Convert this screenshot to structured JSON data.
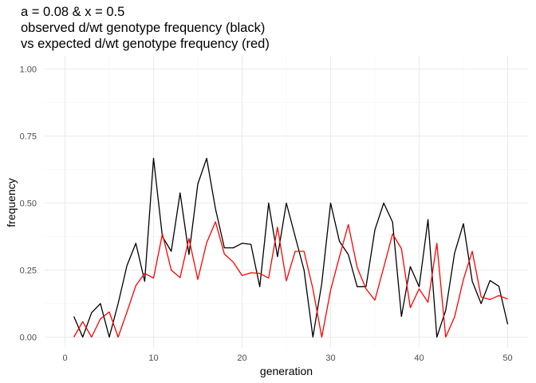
{
  "chart_data": {
    "type": "line",
    "title_lines": [
      "a = 0.08 & x = 0.5",
      "observed d/wt genotype frequency (black)",
      "vs expected d/wt genotype frequency (red)"
    ],
    "xlabel": "generation",
    "ylabel": "frequency",
    "xlim": [
      0,
      50
    ],
    "ylim": [
      0,
      1
    ],
    "x_ticks": [
      "0",
      "10",
      "20",
      "30",
      "40",
      "50"
    ],
    "y_ticks": [
      "0.00",
      "0.25",
      "0.50",
      "0.75",
      "1.00"
    ],
    "grid": true,
    "x": [
      1,
      2,
      3,
      4,
      5,
      6,
      7,
      8,
      9,
      10,
      11,
      12,
      13,
      14,
      15,
      16,
      17,
      18,
      19,
      20,
      21,
      22,
      23,
      24,
      25,
      26,
      27,
      28,
      29,
      30,
      31,
      32,
      33,
      34,
      35,
      36,
      37,
      38,
      39,
      40,
      41,
      42,
      43,
      44,
      45,
      46,
      47,
      48,
      49,
      50
    ],
    "series": [
      {
        "color": "#000000",
        "values": [
          0.077,
          0.0,
          0.091,
          0.125,
          0.0,
          0.125,
          0.267,
          0.35,
          0.208,
          0.667,
          0.375,
          0.32,
          0.538,
          0.308,
          0.571,
          0.667,
          0.478,
          0.333,
          0.333,
          0.35,
          0.346,
          0.188,
          0.5,
          0.3,
          0.5,
          0.375,
          0.25,
          0.0,
          0.2,
          0.5,
          0.357,
          0.308,
          0.188,
          0.188,
          0.4,
          0.5,
          0.429,
          0.077,
          0.263,
          0.188,
          0.438,
          0.0,
          0.1,
          0.313,
          0.423,
          0.208,
          0.125,
          0.211,
          0.19,
          0.048
        ]
      },
      {
        "color": "#ff0000",
        "values": [
          0.0,
          0.058,
          0.0,
          0.068,
          0.094,
          0.0,
          0.094,
          0.192,
          0.238,
          0.22,
          0.385,
          0.25,
          0.222,
          0.368,
          0.215,
          0.352,
          0.43,
          0.31,
          0.28,
          0.23,
          0.24,
          0.238,
          0.22,
          0.41,
          0.21,
          0.32,
          0.32,
          0.18,
          0.0,
          0.175,
          0.3,
          0.42,
          0.26,
          0.18,
          0.138,
          0.26,
          0.385,
          0.33,
          0.11,
          0.18,
          0.13,
          0.35,
          0.0,
          0.075,
          0.215,
          0.32,
          0.15,
          0.14,
          0.155,
          0.142
        ]
      }
    ]
  }
}
